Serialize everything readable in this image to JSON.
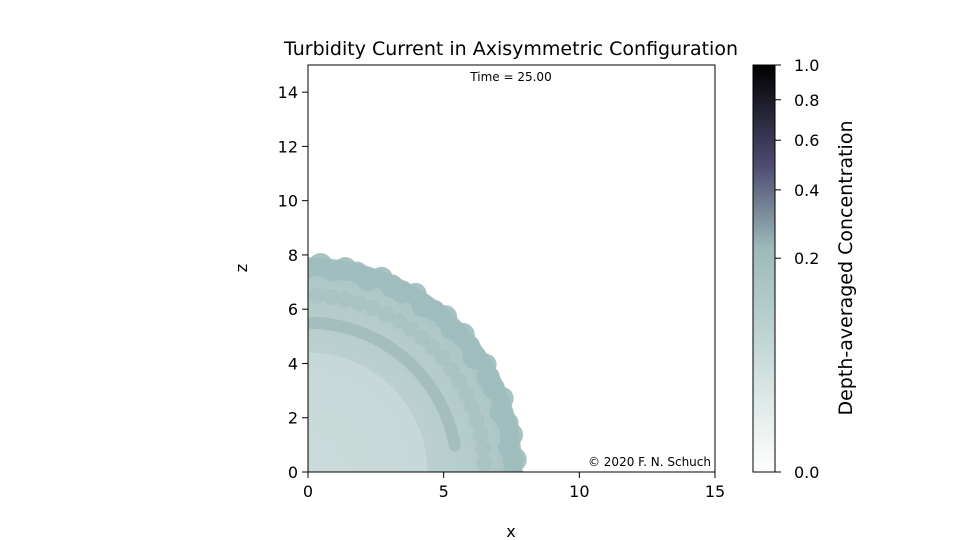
{
  "chart_data": {
    "type": "heatmap",
    "title": "Turbidity Current in Axisymmetric Configuration",
    "annotation_time": "Time = 25.00",
    "annotation_copyright": "© 2020 F. N. Schuch",
    "xlabel": "x",
    "ylabel": "z",
    "xlim": [
      0,
      15
    ],
    "ylim": [
      0,
      15
    ],
    "xticks": [
      0,
      5,
      10,
      15
    ],
    "yticks": [
      0,
      2,
      4,
      6,
      8,
      10,
      12,
      14
    ],
    "grid": false,
    "front_radius": 7.9,
    "colorbar": {
      "label": "Depth-averaged Concentration",
      "scale": "power-law",
      "range": [
        0.0,
        1.0
      ],
      "ticks": [
        0.0,
        0.2,
        0.4,
        0.6,
        0.8,
        1.0
      ],
      "colors": [
        "#ffffff",
        "#a9c5c5",
        "#4c4a6e",
        "#000000"
      ]
    }
  }
}
